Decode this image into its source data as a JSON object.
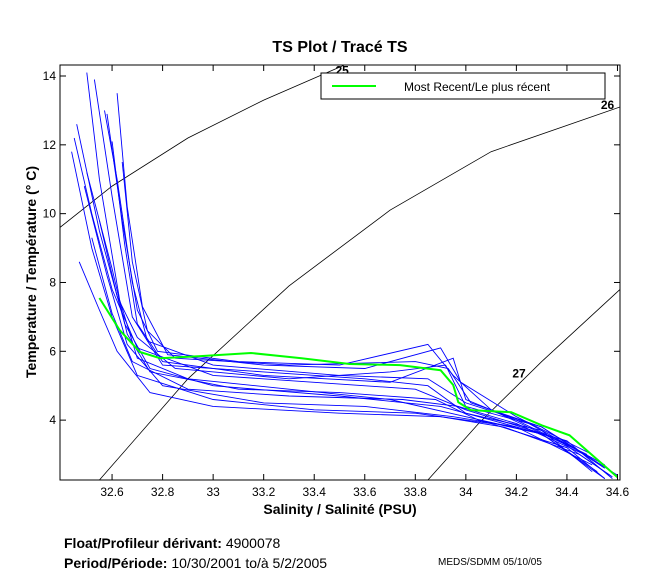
{
  "footer": {
    "float_label": "Float/Profileur dérivant:",
    "float_id": "4900078",
    "period_label": "Period/Période:",
    "period_value": "10/30/2001  to/à  5/2/2005",
    "credit": "MEDS/SDMM  05/10/05"
  },
  "chart_data": {
    "type": "line",
    "title": "TS Plot / Tracé TS",
    "xlabel": "Salinity / Salinité (PSU)",
    "ylabel": "Temperature / Température (° C)",
    "xlim": [
      32.394,
      34.61
    ],
    "ylim": [
      2.26,
      14.32
    ],
    "xticks": [
      32.6,
      32.8,
      33,
      33.2,
      33.4,
      33.6,
      33.8,
      34,
      34.2,
      34.4,
      34.6
    ],
    "xtick_labels": [
      "32.6",
      "32.8",
      "33",
      "33.2",
      "33.4",
      "33.6",
      "33.8",
      "34",
      "34.2",
      "34.4",
      "34.6"
    ],
    "yticks": [
      4,
      6,
      8,
      10,
      12,
      14
    ],
    "ytick_labels": [
      "4",
      "6",
      "8",
      "10",
      "12",
      "14"
    ],
    "grid": false,
    "legend": {
      "position": "top-right",
      "entries": [
        {
          "label": "Most Recent/Le plus récent",
          "color": "#00ff00"
        }
      ]
    },
    "density_contours": [
      {
        "label": "25",
        "points": [
          [
            32.394,
            9.6
          ],
          [
            32.6,
            10.8
          ],
          [
            32.9,
            12.2
          ],
          [
            33.2,
            13.3
          ],
          [
            33.52,
            14.32
          ]
        ]
      },
      {
        "label": "26",
        "points": [
          [
            32.55,
            2.26
          ],
          [
            32.9,
            5.2
          ],
          [
            33.3,
            7.9
          ],
          [
            33.7,
            10.1
          ],
          [
            34.1,
            11.8
          ],
          [
            34.61,
            13.1
          ]
        ]
      },
      {
        "label": "27",
        "points": [
          [
            33.85,
            2.26
          ],
          [
            34.05,
            3.9
          ],
          [
            34.3,
            5.7
          ],
          [
            34.61,
            7.8
          ]
        ]
      }
    ],
    "series": [
      {
        "name": "Most Recent/Le plus récent",
        "color": "#00ff00",
        "points": [
          [
            32.55,
            7.55
          ],
          [
            32.63,
            6.62
          ],
          [
            32.71,
            5.98
          ],
          [
            32.79,
            5.8
          ],
          [
            32.95,
            5.86
          ],
          [
            33.15,
            5.95
          ],
          [
            33.35,
            5.8
          ],
          [
            33.54,
            5.63
          ],
          [
            33.74,
            5.6
          ],
          [
            33.9,
            5.45
          ],
          [
            33.95,
            5.02
          ],
          [
            33.97,
            4.52
          ],
          [
            34.02,
            4.29
          ],
          [
            34.18,
            4.23
          ],
          [
            34.3,
            3.85
          ],
          [
            34.41,
            3.56
          ],
          [
            34.6,
            2.34
          ]
        ]
      },
      {
        "name": "profiles",
        "color": "#0000ff",
        "profiles": [
          [
            [
              32.5,
              14.1
            ],
            [
              32.55,
              11
            ],
            [
              32.63,
              7.5
            ],
            [
              32.7,
              5.8
            ],
            [
              32.9,
              5.2
            ],
            [
              33.3,
              4.9
            ],
            [
              33.7,
              4.6
            ],
            [
              34,
              4.1
            ],
            [
              34.3,
              3.6
            ],
            [
              34.55,
              2.3
            ]
          ],
          [
            [
              32.46,
              12.6
            ],
            [
              32.55,
              9.5
            ],
            [
              32.65,
              6.8
            ],
            [
              32.75,
              5.5
            ],
            [
              33,
              5.0
            ],
            [
              33.5,
              4.7
            ],
            [
              33.9,
              4.4
            ],
            [
              34.1,
              4.0
            ],
            [
              34.4,
              3.4
            ],
            [
              34.58,
              2.3
            ]
          ],
          [
            [
              32.53,
              13.9
            ],
            [
              32.6,
              10.5
            ],
            [
              32.68,
              7
            ],
            [
              32.8,
              5.6
            ],
            [
              33.2,
              5.4
            ],
            [
              33.6,
              5.2
            ],
            [
              33.85,
              5.0
            ],
            [
              34,
              4.2
            ],
            [
              34.3,
              3.7
            ],
            [
              34.5,
              2.5
            ]
          ],
          [
            [
              32.44,
              11.8
            ],
            [
              32.52,
              9
            ],
            [
              32.6,
              7
            ],
            [
              32.7,
              5.3
            ],
            [
              33,
              4.6
            ],
            [
              33.4,
              4.3
            ],
            [
              33.8,
              4.2
            ],
            [
              34.1,
              3.9
            ],
            [
              34.4,
              3.2
            ],
            [
              34.55,
              2.3
            ]
          ],
          [
            [
              32.58,
              12.9
            ],
            [
              32.64,
              9.8
            ],
            [
              32.7,
              7.2
            ],
            [
              32.78,
              6.0
            ],
            [
              33.1,
              5.7
            ],
            [
              33.5,
              5.6
            ],
            [
              33.85,
              6.2
            ],
            [
              33.95,
              5.3
            ],
            [
              34.1,
              4.3
            ],
            [
              34.45,
              3.1
            ]
          ],
          [
            [
              32.49,
              10.8
            ],
            [
              32.58,
              8.2
            ],
            [
              32.66,
              6.2
            ],
            [
              32.8,
              5.0
            ],
            [
              33.2,
              4.5
            ],
            [
              33.6,
              4.4
            ],
            [
              33.95,
              4.1
            ],
            [
              34.2,
              3.8
            ],
            [
              34.5,
              2.7
            ]
          ],
          [
            [
              32.62,
              13.5
            ],
            [
              32.66,
              10.2
            ],
            [
              32.72,
              7.3
            ],
            [
              32.82,
              5.9
            ],
            [
              33.2,
              5.6
            ],
            [
              33.6,
              5.5
            ],
            [
              33.9,
              6.1
            ],
            [
              33.98,
              5.1
            ],
            [
              34.2,
              4.1
            ],
            [
              34.5,
              3.0
            ]
          ],
          [
            [
              32.45,
              12.2
            ],
            [
              32.52,
              10
            ],
            [
              32.6,
              7.8
            ],
            [
              32.7,
              6.1
            ],
            [
              33,
              5.3
            ],
            [
              33.4,
              5.1
            ],
            [
              33.8,
              4.9
            ],
            [
              34,
              4.3
            ],
            [
              34.35,
              3.5
            ],
            [
              34.58,
              2.35
            ]
          ],
          [
            [
              32.55,
              9.8
            ],
            [
              32.62,
              7.6
            ],
            [
              32.7,
              6.4
            ],
            [
              32.85,
              5.5
            ],
            [
              33.3,
              5.2
            ],
            [
              33.7,
              5.4
            ],
            [
              33.92,
              5.6
            ],
            [
              34,
              4.4
            ],
            [
              34.25,
              3.9
            ],
            [
              34.55,
              2.7
            ]
          ],
          [
            [
              32.5,
              11.2
            ],
            [
              32.6,
              8.4
            ],
            [
              32.66,
              6.5
            ],
            [
              32.75,
              5.4
            ],
            [
              33.1,
              4.9
            ],
            [
              33.5,
              4.8
            ],
            [
              33.88,
              4.6
            ],
            [
              34.05,
              4.0
            ],
            [
              34.3,
              3.6
            ],
            [
              34.52,
              2.5
            ]
          ],
          [
            [
              32.6,
              12.1
            ],
            [
              32.65,
              9.1
            ],
            [
              32.7,
              6.8
            ],
            [
              32.8,
              5.7
            ],
            [
              33.2,
              5.3
            ],
            [
              33.7,
              5.1
            ],
            [
              33.95,
              5.8
            ],
            [
              34.0,
              4.6
            ],
            [
              34.2,
              4.0
            ],
            [
              34.48,
              3.0
            ]
          ],
          [
            [
              32.47,
              8.6
            ],
            [
              32.55,
              7.2
            ],
            [
              32.62,
              6.0
            ],
            [
              32.75,
              4.8
            ],
            [
              33.0,
              4.4
            ],
            [
              33.5,
              4.2
            ],
            [
              33.9,
              4.1
            ],
            [
              34.15,
              3.8
            ],
            [
              34.45,
              3.0
            ],
            [
              34.57,
              2.4
            ]
          ],
          [
            [
              32.57,
              13.0
            ],
            [
              32.62,
              11.0
            ],
            [
              32.68,
              8.0
            ],
            [
              32.74,
              6.3
            ],
            [
              33.0,
              5.6
            ],
            [
              33.5,
              5.3
            ],
            [
              33.85,
              5.2
            ],
            [
              34.0,
              4.5
            ],
            [
              34.3,
              3.8
            ],
            [
              34.55,
              2.6
            ]
          ],
          [
            [
              32.52,
              9.3
            ],
            [
              32.6,
              7.1
            ],
            [
              32.68,
              5.7
            ],
            [
              32.9,
              4.9
            ],
            [
              33.3,
              4.7
            ],
            [
              33.75,
              4.6
            ],
            [
              33.97,
              4.4
            ],
            [
              34.2,
              3.9
            ],
            [
              34.5,
              2.9
            ]
          ],
          [
            [
              32.64,
              11.5
            ],
            [
              32.68,
              8.6
            ],
            [
              32.74,
              6.6
            ],
            [
              32.85,
              5.8
            ],
            [
              33.3,
              5.6
            ],
            [
              33.8,
              5.7
            ],
            [
              33.93,
              5.5
            ],
            [
              34.02,
              4.5
            ],
            [
              34.3,
              3.8
            ],
            [
              34.6,
              2.4
            ]
          ]
        ]
      }
    ]
  }
}
